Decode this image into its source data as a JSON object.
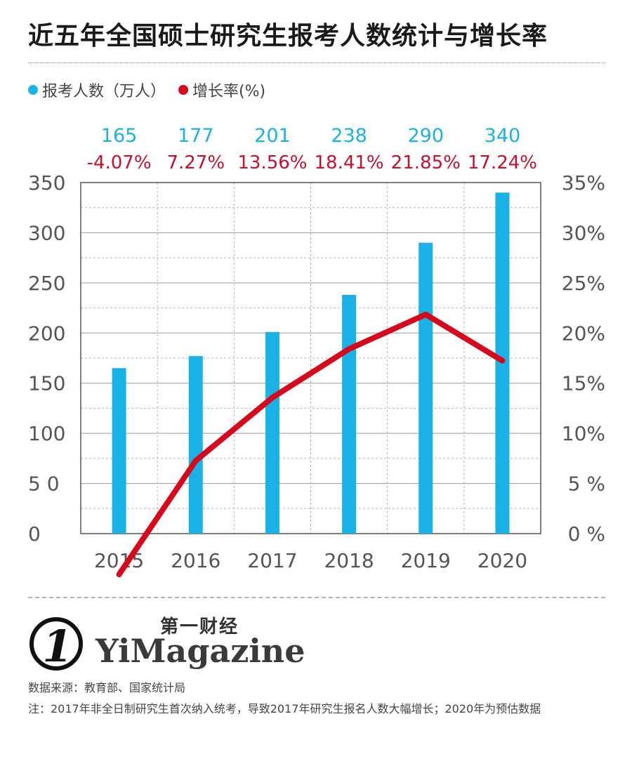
{
  "title": "近五年全国硕士研究生报考人数统计与增长率",
  "legend": {
    "bar_label": "报考人数（万人）",
    "line_label": "增长率(%)"
  },
  "colors": {
    "bar": "#1ab2e6",
    "line": "#d6091c",
    "value_text": "#1ab2e6",
    "rate_text": "#c8102e"
  },
  "chart_data": {
    "type": "bar",
    "categories": [
      "2015",
      "2016",
      "2017",
      "2018",
      "2019",
      "2020"
    ],
    "series": [
      {
        "name": "报考人数（万人）",
        "type": "bar",
        "axis": "left",
        "values": [
          165,
          177,
          201,
          238,
          290,
          340
        ]
      },
      {
        "name": "增长率(%)",
        "type": "line",
        "axis": "right",
        "values": [
          -4.07,
          7.27,
          13.56,
          18.41,
          21.85,
          17.24
        ]
      }
    ],
    "value_labels": [
      "165",
      "177",
      "201",
      "238",
      "290",
      "340"
    ],
    "rate_labels": [
      "-4.07%",
      "7.27%",
      "13.56%",
      "18.41%",
      "21.85%",
      "17.24%"
    ],
    "y_left": {
      "ylim": [
        0,
        350
      ],
      "ticks": [
        0,
        50,
        100,
        150,
        200,
        250,
        300,
        350
      ],
      "tick_labels": [
        "0",
        "5 0",
        "100",
        "150",
        "200",
        "250",
        "300",
        "350"
      ]
    },
    "y_right": {
      "ylim": [
        0,
        35
      ],
      "ticks": [
        0,
        5,
        10,
        15,
        20,
        25,
        30,
        35
      ],
      "tick_labels": [
        "0 %",
        "5 %",
        "10%",
        "15%",
        "20%",
        "25%",
        "30%",
        "35%"
      ]
    },
    "grid": true
  },
  "brand": {
    "cn": "第一财经",
    "en": "YiMagazine",
    "logo_mark": "1"
  },
  "source": "数据来源：教育部、国家统计局",
  "note": "注：2017年非全日制研究生首次纳入统考，导致2017年研究生报名人数大幅增长；2020年为预估数据"
}
